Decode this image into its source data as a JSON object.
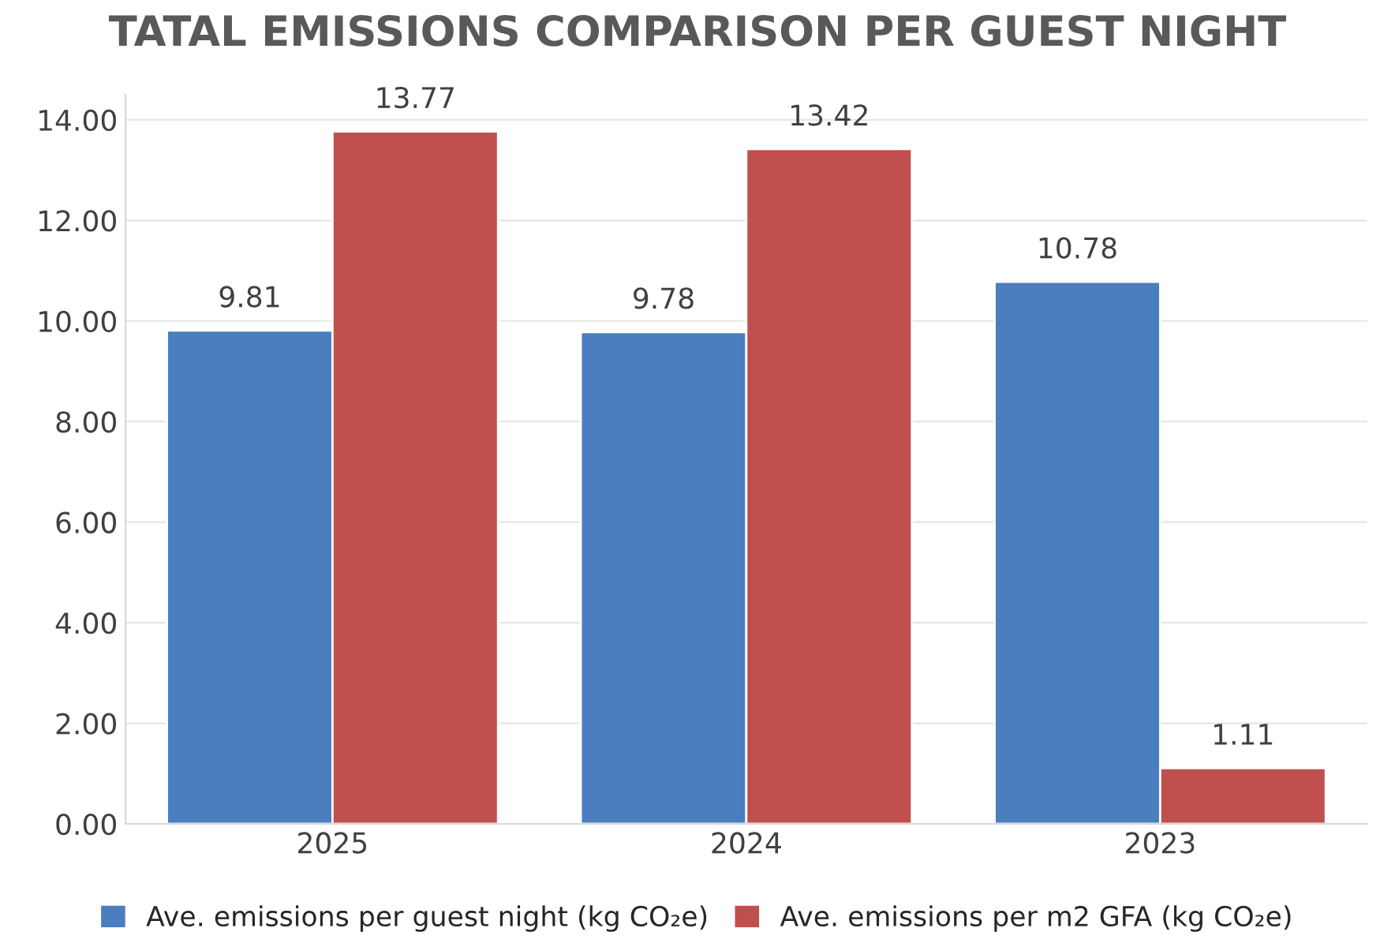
{
  "chart_data": {
    "type": "bar",
    "title": "TATAL EMISSIONS COMPARISON PER GUEST NIGHT",
    "categories": [
      "2025",
      "2024",
      "2023"
    ],
    "series": [
      {
        "name": "Ave. emissions per guest night (kg CO₂e)",
        "color": "#4a7ebf",
        "values": [
          9.81,
          9.78,
          10.78
        ]
      },
      {
        "name": "Ave. emissions per m2 GFA (kg CO₂e)",
        "color": "#c0504d",
        "values": [
          13.77,
          13.42,
          1.11
        ]
      }
    ],
    "ylim": [
      0,
      14.5
    ],
    "yticks": [
      {
        "value": 0,
        "label": "0.00"
      },
      {
        "value": 2,
        "label": "2.00"
      },
      {
        "value": 4,
        "label": "4.00"
      },
      {
        "value": 6,
        "label": "6.00"
      },
      {
        "value": 8,
        "label": "8.00"
      },
      {
        "value": 10,
        "label": "10.00"
      },
      {
        "value": 12,
        "label": "12.00"
      },
      {
        "value": 14,
        "label": "14.00"
      }
    ],
    "grid": "y",
    "legend": "bottom",
    "data_labels": true
  }
}
